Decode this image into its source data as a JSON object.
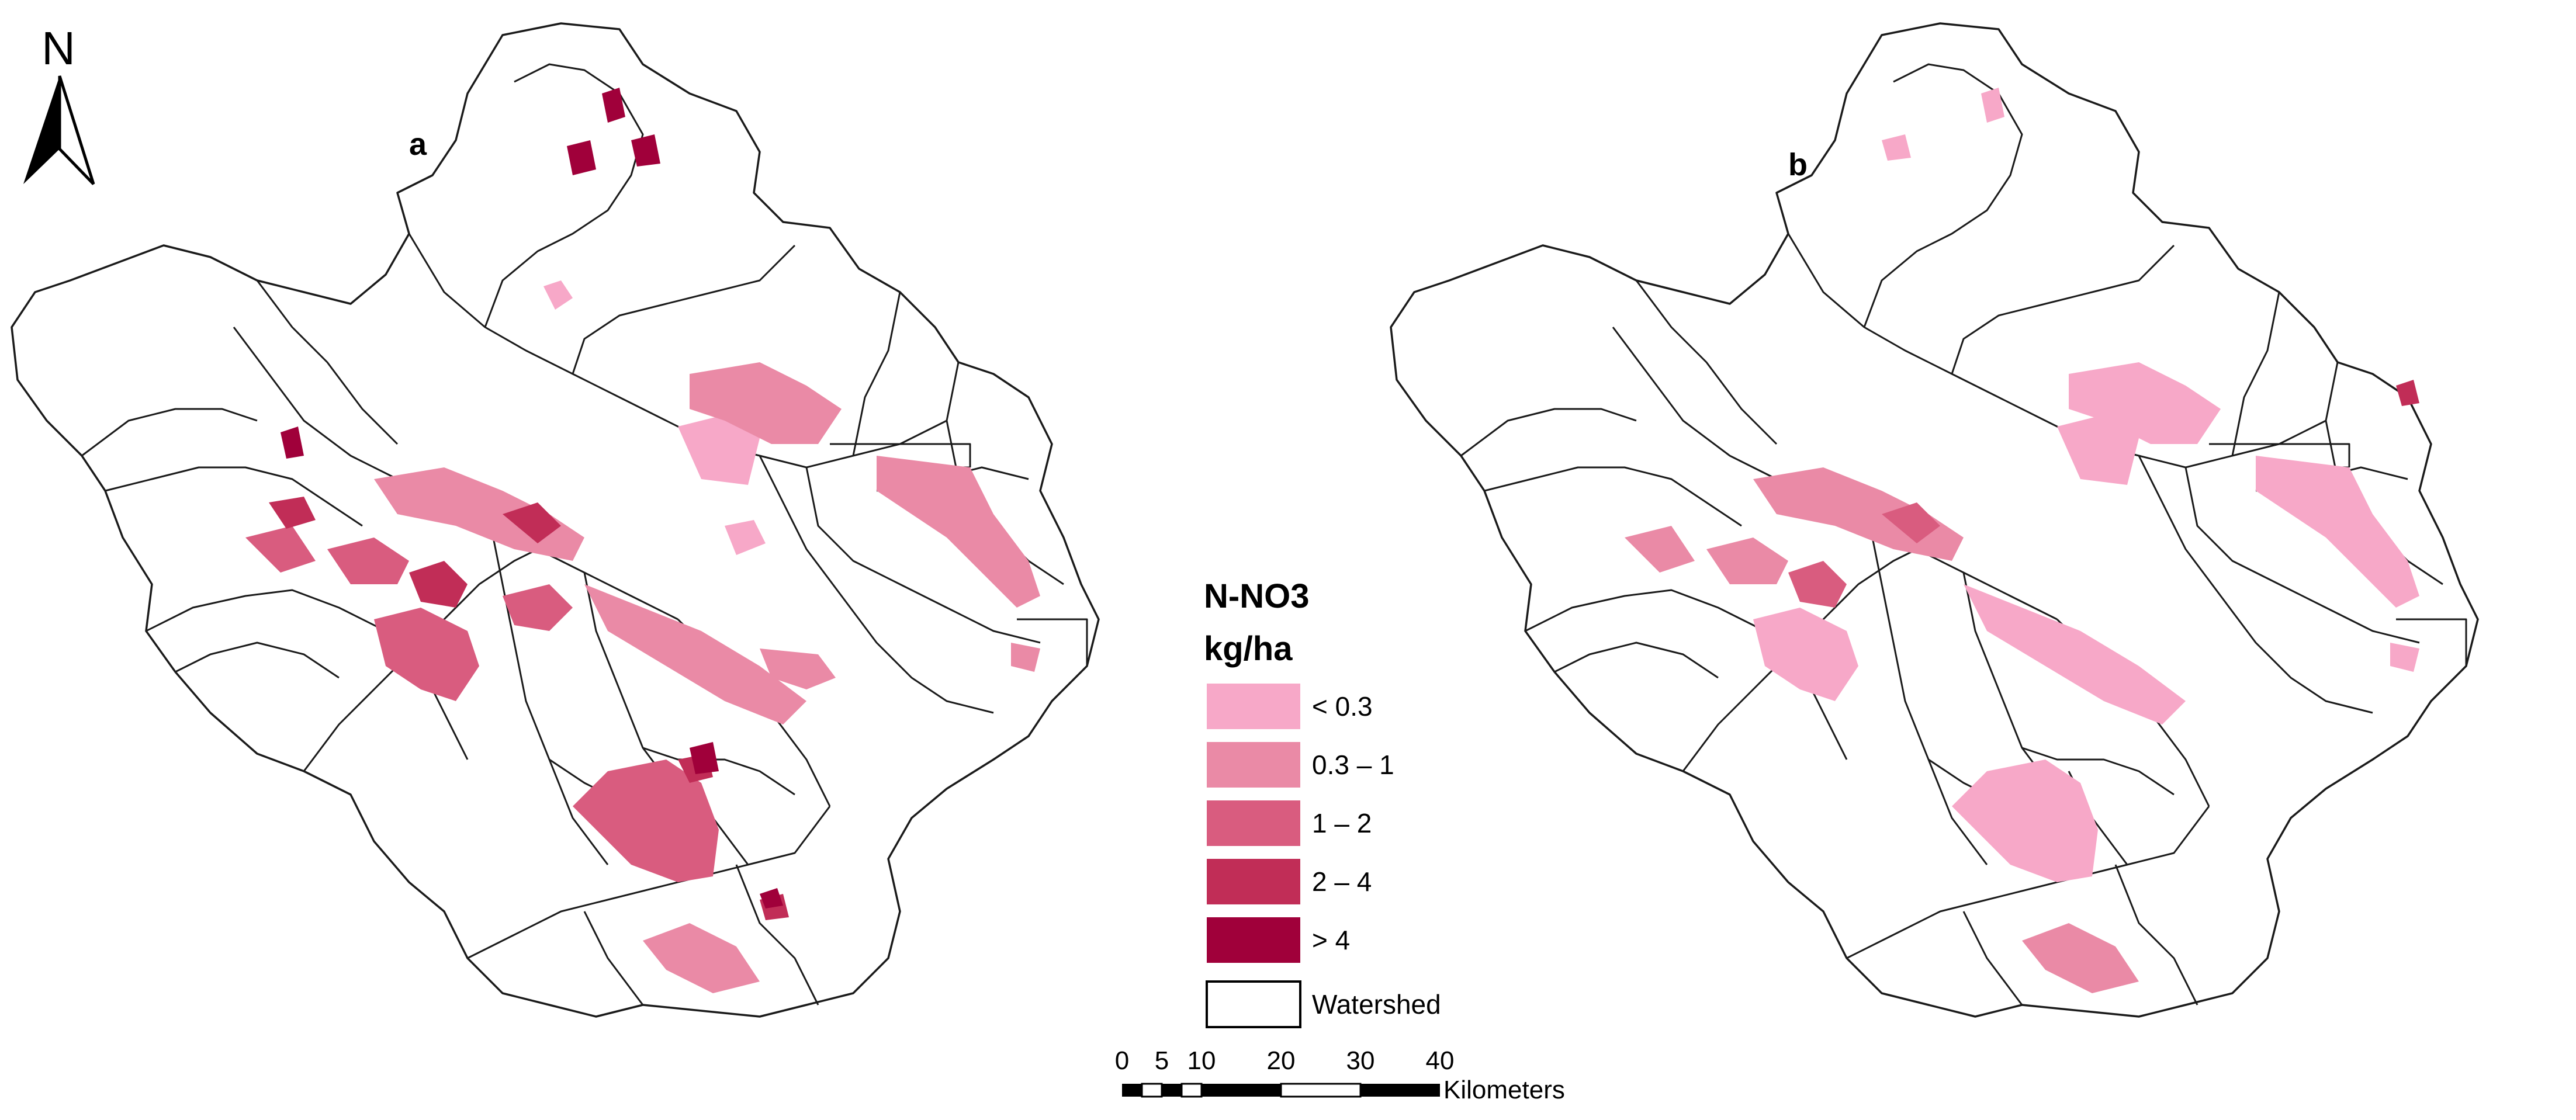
{
  "north_arrow": {
    "label": "N"
  },
  "maps": [
    {
      "id": "a",
      "label": "a"
    },
    {
      "id": "b",
      "label": "b"
    }
  ],
  "legend": {
    "title": "N-NO3",
    "unit": "kg/ha",
    "classes": [
      {
        "label": "< 0.3",
        "color": "#f7a8c8"
      },
      {
        "label": "0.3 – 1",
        "color": "#ea8aa6"
      },
      {
        "label": "1 – 2",
        "color": "#d95c7f"
      },
      {
        "label": "2 – 4",
        "color": "#c12d57"
      },
      {
        "label": "> 4",
        "color": "#a0003a"
      }
    ],
    "watershed": {
      "label": "Watershed",
      "color": "#ffffff"
    }
  },
  "scale_bar": {
    "ticks": [
      "0",
      "5",
      "10",
      "20",
      "30",
      "40"
    ],
    "unit": "Kilometers"
  }
}
